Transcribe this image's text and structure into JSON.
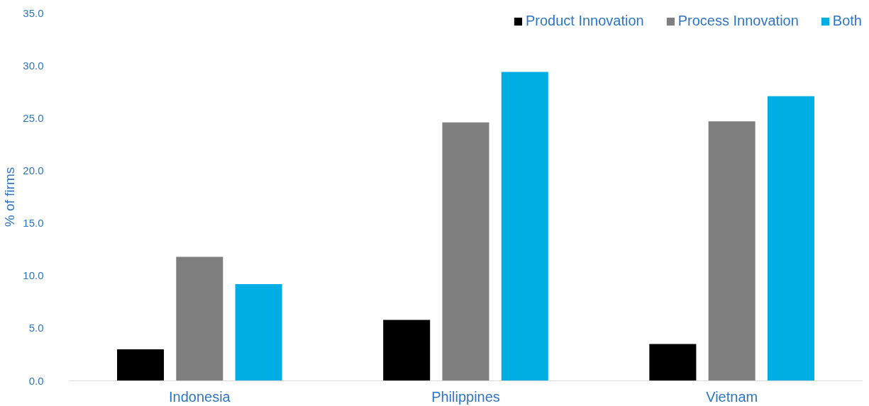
{
  "chart_data": {
    "type": "bar",
    "ylabel": "% of firms",
    "categories": [
      "Indonesia",
      "Philippines",
      "Vietnam"
    ],
    "series": [
      {
        "name": "Product Innovation",
        "color": "#000000",
        "values": [
          3.0,
          5.8,
          3.5
        ]
      },
      {
        "name": "Process Innovation",
        "color": "#7f7f7f",
        "values": [
          11.8,
          24.6,
          24.7
        ]
      },
      {
        "name": "Both",
        "color": "#00aee6",
        "values": [
          9.2,
          29.4,
          27.1
        ]
      }
    ],
    "ylim": [
      0,
      35
    ],
    "yticks": [
      {
        "value": 0,
        "label": "0.0"
      },
      {
        "value": 5,
        "label": "5.0"
      },
      {
        "value": 10,
        "label": "10.0"
      },
      {
        "value": 15,
        "label": "15.0"
      },
      {
        "value": 20,
        "label": "20.0"
      },
      {
        "value": 25,
        "label": "25.0"
      },
      {
        "value": 30,
        "label": "30.0"
      },
      {
        "value": 35,
        "label": "35.0"
      }
    ],
    "grid": false,
    "legend": "top right"
  }
}
